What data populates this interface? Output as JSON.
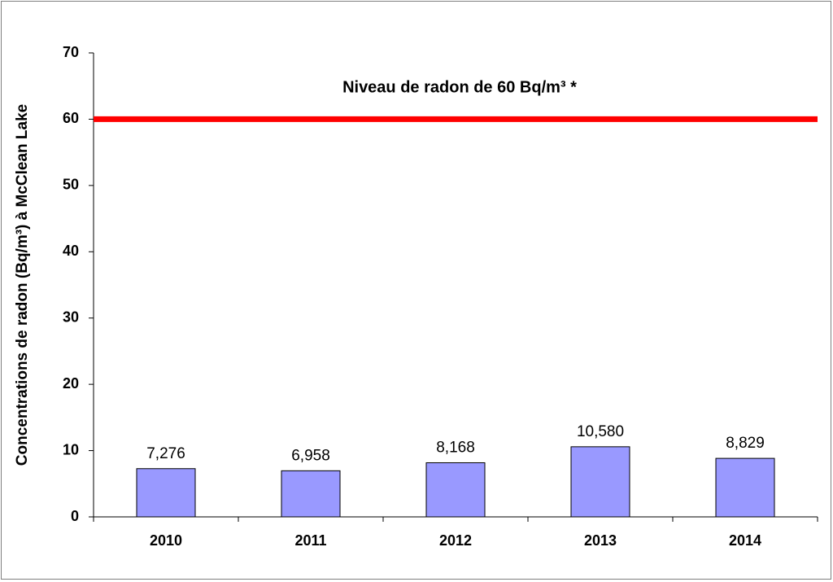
{
  "chart_data": {
    "type": "bar",
    "y_label": "Concentrations de radon (Bq/m³) à McClean Lake",
    "categories": [
      "2010",
      "2011",
      "2012",
      "2013",
      "2014"
    ],
    "values": [
      7.276,
      6.958,
      8.168,
      10.58,
      8.829
    ],
    "value_labels": [
      "7,276",
      "6,958",
      "8,168",
      "10,580",
      "8,829"
    ],
    "color": "#9999ff",
    "ylim": [
      0,
      70
    ],
    "yticks": [
      0,
      10,
      20,
      30,
      40,
      50,
      60,
      70
    ],
    "grid": false,
    "reference_line": {
      "value": 60,
      "label": "Niveau de radon de 60 Bq/m³ *",
      "color": "#ff0000"
    }
  }
}
